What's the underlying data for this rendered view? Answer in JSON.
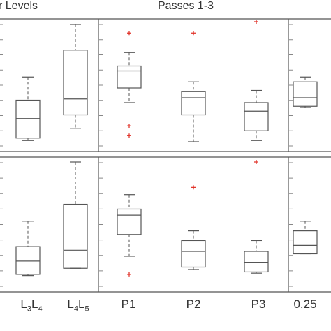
{
  "header": {
    "left_title": "r Levels",
    "right_title": "Passes 1-3"
  },
  "categories": [
    {
      "id": "L3L4",
      "main": "L",
      "sub1": "3",
      "main2": "L",
      "sub2": "4"
    },
    {
      "id": "L4L5",
      "main": "L",
      "sub1": "4",
      "main2": "L",
      "sub2": "5"
    },
    {
      "id": "P1",
      "label": "P1"
    },
    {
      "id": "P2",
      "label": "P2"
    },
    {
      "id": "P3",
      "label": "P3"
    },
    {
      "id": "025",
      "label": "0.25"
    }
  ],
  "colors": {
    "box": "#555555",
    "outlier": "#e0281e",
    "axis": "#555555",
    "tick": "#888888",
    "text": "#333333"
  },
  "chart_data": [
    {
      "type": "box",
      "panel": "top",
      "y_axis": "normalized 0-1 (no tick labels visible)",
      "ylim": [
        0,
        1
      ],
      "boxes": [
        {
          "category": "L3L4",
          "whisker_low": 0.05,
          "q1": 0.07,
          "median": 0.23,
          "q3": 0.38,
          "whisker_high": 0.57,
          "outliers": []
        },
        {
          "category": "L4L5",
          "whisker_low": 0.15,
          "q1": 0.26,
          "median": 0.39,
          "q3": 0.79,
          "whisker_high": 1.0,
          "outliers": []
        },
        {
          "category": "P1",
          "whisker_low": 0.36,
          "q1": 0.48,
          "median": 0.62,
          "q3": 0.66,
          "whisker_high": 0.77,
          "outliers": [
            0.93,
            0.17,
            0.09
          ]
        },
        {
          "category": "P2",
          "whisker_low": 0.04,
          "q1": 0.26,
          "median": 0.4,
          "q3": 0.45,
          "whisker_high": 0.53,
          "outliers": [
            0.93
          ]
        },
        {
          "category": "P3",
          "whisker_low": 0.05,
          "q1": 0.13,
          "median": 0.29,
          "q3": 0.36,
          "whisker_high": 0.46,
          "outliers": [
            1.15
          ]
        },
        {
          "category": "025",
          "whisker_low": 0.32,
          "q1": 0.33,
          "median": 0.4,
          "q3": 0.53,
          "whisker_high": 0.57,
          "outliers": []
        }
      ]
    },
    {
      "type": "box",
      "panel": "bottom",
      "y_axis": "normalized 0-1 (no tick labels visible)",
      "ylim": [
        0,
        1
      ],
      "boxes": [
        {
          "category": "L3L4",
          "whisker_low": 0.06,
          "q1": 0.07,
          "median": 0.18,
          "q3": 0.3,
          "whisker_high": 0.51,
          "outliers": []
        },
        {
          "category": "L4L5",
          "whisker_low": 0.12,
          "q1": 0.12,
          "median": 0.27,
          "q3": 0.65,
          "whisker_high": 1.0,
          "outliers": []
        },
        {
          "category": "P1",
          "whisker_low": 0.22,
          "q1": 0.4,
          "median": 0.56,
          "q3": 0.61,
          "whisker_high": 0.73,
          "outliers": [
            0.07
          ]
        },
        {
          "category": "P2",
          "whisker_low": 0.11,
          "q1": 0.13,
          "median": 0.26,
          "q3": 0.35,
          "whisker_high": 0.43,
          "outliers": [
            0.79
          ]
        },
        {
          "category": "P3",
          "whisker_low": 0.08,
          "q1": 0.09,
          "median": 0.17,
          "q3": 0.26,
          "whisker_high": 0.35,
          "outliers": [
            1.0
          ]
        },
        {
          "category": "025",
          "whisker_low": 0.24,
          "q1": 0.24,
          "median": 0.31,
          "q3": 0.43,
          "whisker_high": 0.51,
          "outliers": []
        }
      ]
    }
  ]
}
